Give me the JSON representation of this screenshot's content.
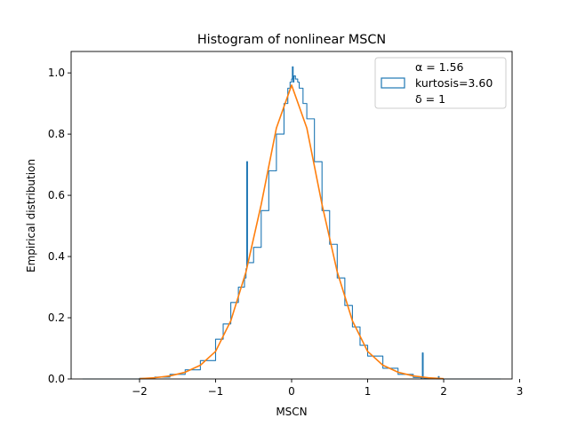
{
  "chart_data": {
    "type": "line",
    "title": "Histogram of nonlinear MSCN",
    "xlabel": "MSCN",
    "ylabel": "Empirical distribution",
    "xlim": [
      -2.9,
      2.9
    ],
    "ylim": [
      0,
      1.07
    ],
    "xticks": [
      -2,
      -1,
      0,
      1,
      2,
      3
    ],
    "yticks": [
      0.0,
      0.2,
      0.4,
      0.6,
      0.8,
      1.0
    ],
    "xtick_labels": [
      "−2",
      "−1",
      "0",
      "1",
      "2",
      "3"
    ],
    "ytick_labels": [
      "0.0",
      "0.2",
      "0.4",
      "0.6",
      "0.8",
      "1.0"
    ],
    "grid": false,
    "legend_position": "top-right",
    "legend": {
      "lines": [
        "α = 1.56",
        "kurtosis=3.60",
        "δ = 1"
      ]
    },
    "series": [
      {
        "kind": "step",
        "color": "#1f77b4",
        "x": [
          -2.75,
          -2.3,
          -2.0,
          -1.8,
          -1.6,
          -1.4,
          -1.2,
          -1.0,
          -0.9,
          -0.8,
          -0.7,
          -0.62,
          -0.6,
          -0.59,
          -0.58,
          -0.5,
          -0.4,
          -0.3,
          -0.2,
          -0.1,
          -0.05,
          -0.02,
          0.0,
          0.01,
          0.02,
          0.03,
          0.05,
          0.08,
          0.1,
          0.15,
          0.2,
          0.3,
          0.4,
          0.5,
          0.6,
          0.7,
          0.8,
          0.9,
          1.0,
          1.2,
          1.4,
          1.6,
          1.7,
          1.72,
          1.73,
          1.74,
          1.8,
          1.9,
          1.93,
          1.94,
          2.0,
          2.3,
          2.75
        ],
        "y": [
          0.0,
          0.0,
          0.002,
          0.006,
          0.015,
          0.03,
          0.06,
          0.13,
          0.18,
          0.25,
          0.3,
          0.33,
          0.36,
          0.71,
          0.38,
          0.43,
          0.55,
          0.68,
          0.8,
          0.9,
          0.95,
          0.97,
          0.98,
          1.02,
          0.97,
          0.99,
          0.98,
          0.97,
          0.95,
          0.9,
          0.85,
          0.71,
          0.55,
          0.44,
          0.33,
          0.24,
          0.17,
          0.11,
          0.075,
          0.035,
          0.015,
          0.005,
          0.003,
          0.085,
          0.004,
          0.002,
          0.002,
          0.001,
          0.008,
          0.0,
          0.0,
          0.0,
          0.0
        ]
      },
      {
        "kind": "fit",
        "color": "#ff7f0e",
        "x": [
          -2.0,
          -1.8,
          -1.6,
          -1.4,
          -1.2,
          -1.0,
          -0.8,
          -0.6,
          -0.4,
          -0.2,
          0.0,
          0.2,
          0.4,
          0.6,
          0.8,
          1.0,
          1.2,
          1.4,
          1.6,
          1.8,
          2.0
        ],
        "y": [
          0.001,
          0.004,
          0.01,
          0.022,
          0.045,
          0.09,
          0.19,
          0.35,
          0.57,
          0.82,
          0.96,
          0.82,
          0.57,
          0.35,
          0.19,
          0.09,
          0.045,
          0.022,
          0.01,
          0.004,
          0.001
        ]
      }
    ]
  }
}
